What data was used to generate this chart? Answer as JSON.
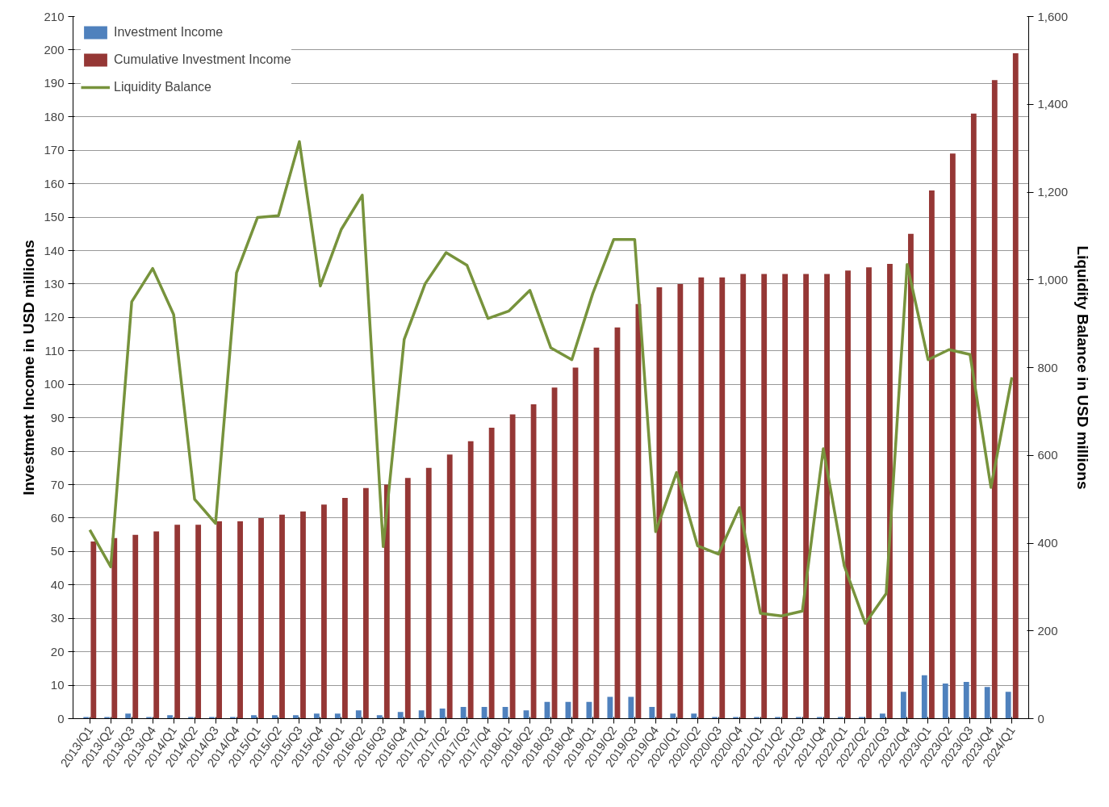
{
  "chart_data": {
    "type": "bar",
    "ylabel": "Investment Income in USD millions",
    "y2label": "Liquidity Balance in USD millions",
    "categories": [
      "2013/Q1",
      "2013/Q2",
      "2013/Q3",
      "2013/Q4",
      "2014/Q1",
      "2014/Q2",
      "2014/Q3",
      "2014/Q4",
      "2015/Q1",
      "2015/Q2",
      "2015/Q3",
      "2015/Q4",
      "2016/Q1",
      "2016/Q2",
      "2016/Q3",
      "2016/Q4",
      "2017/Q1",
      "2017/Q2",
      "2017/Q3",
      "2017/Q4",
      "2018/Q1",
      "2018/Q2",
      "2018/Q3",
      "2018/Q4",
      "2019/Q1",
      "2019/Q2",
      "2019/Q3",
      "2019/Q4",
      "2020/Q1",
      "2020/Q2",
      "2020/Q3",
      "2020/Q4",
      "2021/Q1",
      "2021/Q2",
      "2021/Q3",
      "2021/Q4",
      "2022/Q1",
      "2022/Q2",
      "2022/Q3",
      "2022/Q4",
      "2023/Q1",
      "2023/Q2",
      "2023/Q3",
      "2023/Q4",
      "2024/Q1"
    ],
    "series": [
      {
        "name": "Investment Income",
        "color": "#4f81bd",
        "values": [
          0.5,
          0.5,
          1.5,
          0.5,
          1,
          0.5,
          0.5,
          0.5,
          1,
          1,
          1,
          1.5,
          1.5,
          2.5,
          1,
          2,
          2.5,
          3,
          3.5,
          3.5,
          3.5,
          2.5,
          5,
          5,
          5,
          6.5,
          6.5,
          3.5,
          1.5,
          1.5,
          0.5,
          0.5,
          0.5,
          0.5,
          0.5,
          0.5,
          0.5,
          0.5,
          1.5,
          8,
          13,
          10.5,
          11,
          9.5,
          8
        ]
      },
      {
        "name": "Cumulative Investment Income",
        "color": "#953735",
        "values": [
          53,
          54,
          55,
          56,
          58,
          58,
          59,
          59,
          60,
          61,
          62,
          64,
          66,
          69,
          70,
          72,
          75,
          79,
          83,
          87,
          91,
          94,
          99,
          105,
          111,
          117,
          124,
          129,
          130,
          132,
          132,
          133,
          133,
          133,
          133,
          133,
          134,
          135,
          136,
          145,
          158,
          169,
          181,
          191,
          199
        ]
      },
      {
        "name": "Liquidity Balance",
        "color": "#77933c",
        "type": "line",
        "axis": "y2",
        "values": [
          430,
          346,
          950,
          1026,
          921,
          500,
          445,
          1016,
          1142,
          1146,
          1315,
          986,
          1115,
          1193,
          392,
          864,
          991,
          1062,
          1033,
          912,
          929,
          976,
          845,
          818,
          969,
          1092,
          1092,
          426,
          561,
          394,
          375,
          481,
          240,
          234,
          245,
          615,
          348,
          217,
          285,
          1035,
          818,
          841,
          830,
          527,
          778
        ]
      }
    ],
    "ylim": [
      0,
      210
    ],
    "yticks": [
      0,
      10,
      20,
      30,
      40,
      50,
      60,
      70,
      80,
      90,
      100,
      110,
      120,
      130,
      140,
      150,
      160,
      170,
      180,
      190,
      200,
      210
    ],
    "y2lim": [
      0,
      1600
    ],
    "y2ticks": [
      {
        "value": 0,
        "label": "0"
      },
      {
        "value": 200,
        "label": "200"
      },
      {
        "value": 400,
        "label": "400"
      },
      {
        "value": 600,
        "label": "600"
      },
      {
        "value": 800,
        "label": "800"
      },
      {
        "value": 1000,
        "label": "1,000"
      },
      {
        "value": 1200,
        "label": "1,200"
      },
      {
        "value": 1400,
        "label": "1,400"
      },
      {
        "value": 1600,
        "label": "1,600"
      }
    ],
    "grid": "y",
    "legend": "top left"
  }
}
